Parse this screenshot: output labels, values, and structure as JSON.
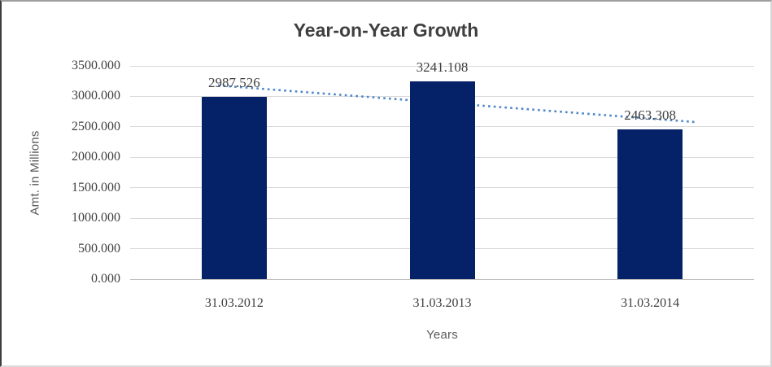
{
  "chart_data": {
    "type": "bar",
    "title": "Year-on-Year Growth",
    "xlabel": "Years",
    "ylabel": "Amt. in Millions",
    "categories": [
      "31.03.2012",
      "31.03.2013",
      "31.03.2014"
    ],
    "values": [
      2987.526,
      3241.108,
      2463.308
    ],
    "data_labels": [
      "2987.526",
      "3241.108",
      "2463.308"
    ],
    "ylim": [
      0,
      3500
    ],
    "ytick_step": 500,
    "ytick_labels": [
      "3500.000",
      "3000.000",
      "2500.000",
      "2000.000",
      "1500.000",
      "1000.000",
      "500.000",
      "0.000"
    ],
    "grid": true,
    "legend": "none",
    "trendline": {
      "type": "linear",
      "style": "dotted"
    },
    "colors": {
      "bar": "#052268",
      "trendline": "#4e86c8",
      "gridline": "#d9d9d9",
      "axis_line": "#bfbfbf",
      "label_text": "#3f3f3f",
      "axis_title_text": "#595959",
      "title_text": "#3f3f3f"
    }
  }
}
